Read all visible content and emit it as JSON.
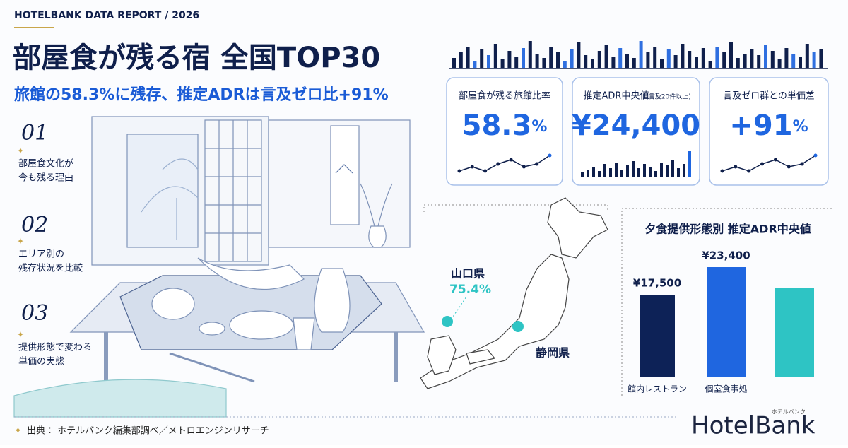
{
  "header": {
    "kicker": "HOTELBANK DATA REPORT / 2026",
    "title": "部屋食が残る宿 全国TOP30",
    "subtitle": "旅館の58.3%に残存、推定ADRは言及ゼロ比+91%"
  },
  "points": [
    {
      "number": "01",
      "lines": [
        "部屋食文化が",
        "今も残る理由"
      ]
    },
    {
      "number": "02",
      "lines": [
        "エリア別の",
        "残存状況を比較"
      ]
    },
    {
      "number": "03",
      "lines": [
        "提供形態で変わる",
        "単価の実態"
      ]
    }
  ],
  "kpis": [
    {
      "label": "部屋食が残る旅館比率",
      "value": "58.3",
      "unit": "%"
    },
    {
      "label": "推定ADR中央値",
      "note": "(言及20件以上)",
      "value": "¥24,400"
    },
    {
      "label": "言及ゼロ群との単価差",
      "value": "+91",
      "unit": "%"
    }
  ],
  "map": {
    "pins": [
      {
        "name": "山口県",
        "value": "75.4%"
      },
      {
        "name": "静岡県"
      }
    ]
  },
  "chart_data": {
    "type": "bar",
    "title": "夕食提供形態別 推定ADR中央値",
    "categories": [
      "館内レストラン",
      "個室食事処",
      null
    ],
    "values": [
      17500,
      23400,
      18900
    ],
    "value_labels": [
      "¥17,500",
      "¥23,400",
      null
    ],
    "colors": [
      "#0d2257",
      "#1f66e0",
      "#2ec4c4"
    ]
  },
  "footer": {
    "source": "出典： ホテルバンク編集部調べ／メトロエンジンリサーチ",
    "logo": "HotelBank",
    "logo_kana": "ホテルバンク"
  }
}
